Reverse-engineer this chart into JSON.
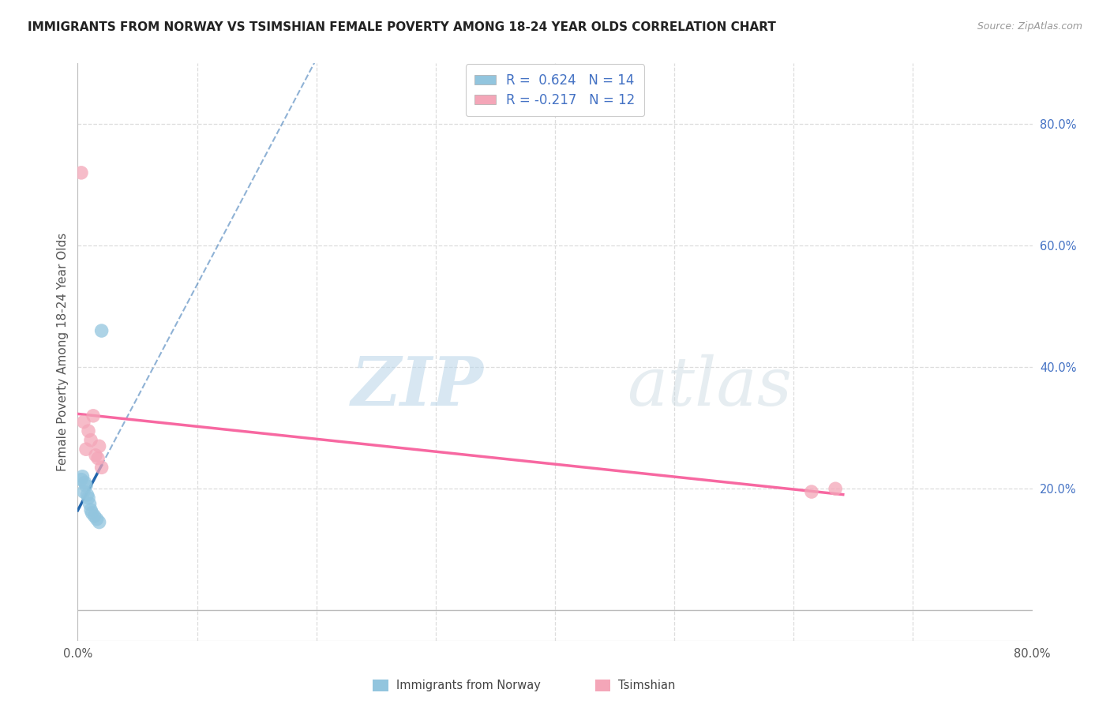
{
  "title": "IMMIGRANTS FROM NORWAY VS TSIMSHIAN FEMALE POVERTY AMONG 18-24 YEAR OLDS CORRELATION CHART",
  "source": "Source: ZipAtlas.com",
  "ylabel": "Female Poverty Among 18-24 Year Olds",
  "xlim": [
    0.0,
    0.8
  ],
  "ylim": [
    -0.05,
    0.9
  ],
  "right_yticks": [
    0.0,
    0.2,
    0.4,
    0.6,
    0.8
  ],
  "right_yticklabels": [
    "",
    "20.0%",
    "40.0%",
    "60.0%",
    "80.0%"
  ],
  "legend_norway": "R =  0.624   N = 14",
  "legend_tsimshian": "R = -0.217   N = 12",
  "color_norway": "#92C5DE",
  "color_tsimshian": "#F4A6B8",
  "trendline_norway": "#2166AC",
  "trendline_tsimshian": "#F768A1",
  "norway_x": [
    0.003,
    0.004,
    0.005,
    0.006,
    0.007,
    0.008,
    0.009,
    0.01,
    0.011,
    0.012,
    0.014,
    0.016,
    0.018,
    0.02
  ],
  "norway_y": [
    0.215,
    0.22,
    0.195,
    0.21,
    0.205,
    0.19,
    0.185,
    0.175,
    0.165,
    0.16,
    0.155,
    0.15,
    0.145,
    0.46
  ],
  "tsimshian_x": [
    0.003,
    0.005,
    0.007,
    0.009,
    0.011,
    0.013,
    0.015,
    0.017,
    0.018,
    0.02,
    0.615,
    0.635
  ],
  "tsimshian_y": [
    0.72,
    0.31,
    0.265,
    0.295,
    0.28,
    0.32,
    0.255,
    0.25,
    0.27,
    0.235,
    0.195,
    0.2
  ],
  "watermark_zip": "ZIP",
  "watermark_atlas": "atlas",
  "bottom_legend_norway": "Immigrants from Norway",
  "bottom_legend_tsimshian": "Tsimshian",
  "grid_color": "#DDDDDD",
  "grid_yticks": [
    0.2,
    0.4,
    0.6,
    0.8
  ],
  "grid_xticks": [
    0.1,
    0.2,
    0.3,
    0.4,
    0.5,
    0.6,
    0.7
  ]
}
